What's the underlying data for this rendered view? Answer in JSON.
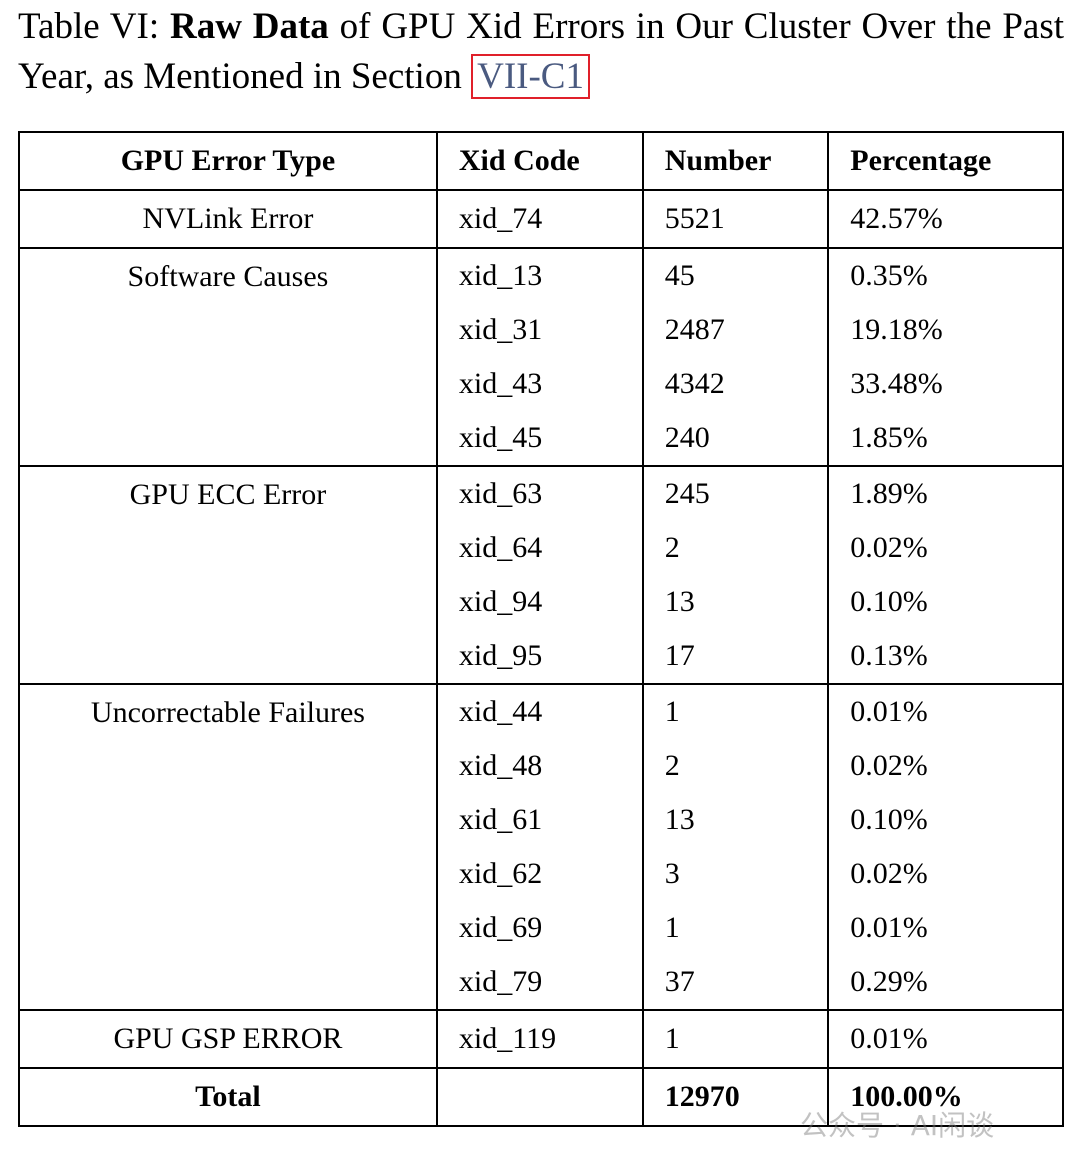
{
  "caption": {
    "label": "Table VI:",
    "bold": "Raw Data",
    "text": "of GPU Xid Errors in Our Cluster Over the Past Year, as Mentioned in Section",
    "link": "VII-C1"
  },
  "table": {
    "header": [
      "GPU Error Type",
      "Xid Code",
      "Number",
      "Percentage"
    ],
    "groups": [
      {
        "type": "NVLink Error",
        "rows": [
          [
            "xid_74",
            "5521",
            "42.57%"
          ]
        ]
      },
      {
        "type": "Software Causes",
        "rows": [
          [
            "xid_13",
            "45",
            "0.35%"
          ],
          [
            "xid_31",
            "2487",
            "19.18%"
          ],
          [
            "xid_43",
            "4342",
            "33.48%"
          ],
          [
            "xid_45",
            "240",
            "1.85%"
          ]
        ]
      },
      {
        "type": "GPU ECC Error",
        "rows": [
          [
            "xid_63",
            "245",
            "1.89%"
          ],
          [
            "xid_64",
            "2",
            "0.02%"
          ],
          [
            "xid_94",
            "13",
            "0.10%"
          ],
          [
            "xid_95",
            "17",
            "0.13%"
          ]
        ]
      },
      {
        "type": "Uncorrectable Failures",
        "rows": [
          [
            "xid_44",
            "1",
            "0.01%"
          ],
          [
            "xid_48",
            "2",
            "0.02%"
          ],
          [
            "xid_61",
            "13",
            "0.10%"
          ],
          [
            "xid_62",
            "3",
            "0.02%"
          ],
          [
            "xid_69",
            "1",
            "0.01%"
          ],
          [
            "xid_79",
            "37",
            "0.29%"
          ]
        ]
      },
      {
        "type": "GPU GSP ERROR",
        "rows": [
          [
            "xid_119",
            "1",
            "0.01%"
          ]
        ]
      }
    ],
    "total": {
      "label": "Total",
      "number": "12970",
      "percentage": "100.00%"
    }
  },
  "watermark": "公众号 · AI闲谈"
}
